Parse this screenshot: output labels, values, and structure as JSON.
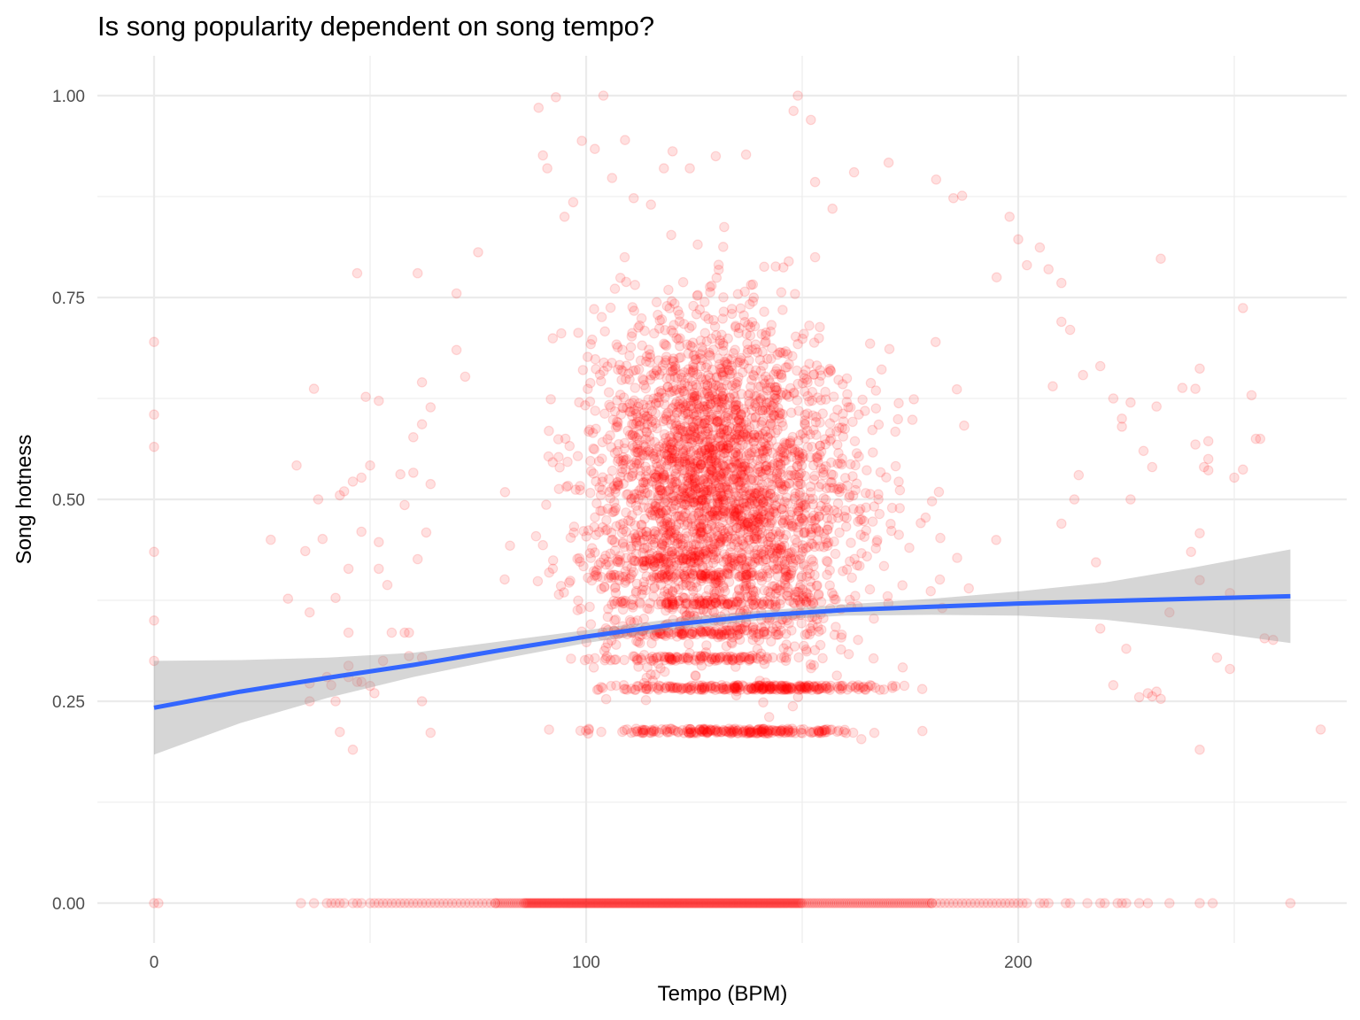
{
  "chart_data": {
    "type": "scatter",
    "title": "Is song popularity dependent on song tempo?",
    "xlabel": "Tempo (BPM)",
    "ylabel": "Song hotness",
    "xlim": [
      -13,
      276
    ],
    "ylim": [
      -0.1,
      1.05
    ],
    "x_ticks": [
      0,
      100,
      200
    ],
    "x_tick_labels": [
      "0",
      "100",
      "200"
    ],
    "x_minor_ticks": [
      50,
      150,
      250
    ],
    "y_ticks": [
      0,
      0.25,
      0.5,
      0.75,
      1.0
    ],
    "y_tick_labels": [
      "0.00",
      "0.25",
      "0.50",
      "0.75",
      "1.00"
    ],
    "y_minor_ticks": [
      0.125,
      0.375,
      0.625,
      0.875
    ],
    "grid": true,
    "legend": "none",
    "colors": {
      "points": "#ff0000",
      "point_alpha": 0.12,
      "smooth_line": "#3366ff",
      "ci_band": "#999999",
      "ci_alpha": 0.4
    },
    "series": [
      {
        "name": "songs",
        "kind": "points",
        "outlier_points": [
          [
            0,
            0.695
          ],
          [
            0,
            0.605
          ],
          [
            0,
            0.565
          ],
          [
            0,
            0.435
          ],
          [
            0,
            0.35
          ],
          [
            0,
            0.3
          ],
          [
            0,
            0.0
          ],
          [
            1,
            0.0
          ],
          [
            27,
            0.45
          ],
          [
            31,
            0.377
          ],
          [
            33,
            0.542
          ],
          [
            35,
            0.436
          ],
          [
            36,
            0.36
          ],
          [
            36,
            0.272
          ],
          [
            36,
            0.25
          ],
          [
            37,
            0.637
          ],
          [
            38,
            0.5
          ],
          [
            39,
            0.451
          ],
          [
            40,
            0.28
          ],
          [
            41,
            0.27
          ],
          [
            42,
            0.25
          ],
          [
            42,
            0.378
          ],
          [
            43,
            0.505
          ],
          [
            43,
            0.212
          ],
          [
            44,
            0.51
          ],
          [
            45,
            0.28
          ],
          [
            45,
            0.294
          ],
          [
            45,
            0.414
          ],
          [
            45,
            0.335
          ],
          [
            46,
            0.19
          ],
          [
            46,
            0.522
          ],
          [
            47,
            0.78
          ],
          [
            47,
            0.274
          ],
          [
            48,
            0.46
          ],
          [
            48,
            0.527
          ],
          [
            48,
            0.274
          ],
          [
            49,
            0.627
          ],
          [
            50,
            0.269
          ],
          [
            50,
            0.542
          ],
          [
            51,
            0.26
          ],
          [
            52,
            0.622
          ],
          [
            52,
            0.414
          ],
          [
            52,
            0.447
          ],
          [
            53,
            0.3
          ],
          [
            54,
            0.394
          ],
          [
            55,
            0.335
          ],
          [
            57,
            0.531
          ],
          [
            58,
            0.493
          ],
          [
            58,
            0.335
          ],
          [
            59,
            0.306
          ],
          [
            59,
            0.335
          ],
          [
            60,
            0.577
          ],
          [
            60,
            0.533
          ],
          [
            61,
            0.78
          ],
          [
            61,
            0.426
          ],
          [
            62,
            0.645
          ],
          [
            62,
            0.593
          ],
          [
            62,
            0.25
          ],
          [
            62,
            0.304
          ],
          [
            63,
            0.459
          ],
          [
            64,
            0.614
          ],
          [
            64,
            0.519
          ],
          [
            64,
            0.211
          ],
          [
            70,
            0.755
          ],
          [
            75,
            0.806
          ],
          [
            70,
            0.685
          ],
          [
            72,
            0.652
          ],
          [
            90,
            0.926
          ],
          [
            91,
            0.91
          ],
          [
            89,
            0.985
          ],
          [
            93,
            0.998
          ],
          [
            95,
            0.85
          ],
          [
            97,
            0.868
          ],
          [
            99,
            0.944
          ],
          [
            104,
            1.0
          ],
          [
            102,
            0.934
          ],
          [
            106,
            0.898
          ],
          [
            109,
            0.945
          ],
          [
            111,
            0.873
          ],
          [
            115,
            0.865
          ],
          [
            118,
            0.91
          ],
          [
            120,
            0.931
          ],
          [
            124,
            0.91
          ],
          [
            130,
            0.925
          ],
          [
            137,
            0.927
          ],
          [
            149,
            1.0
          ],
          [
            148,
            0.981
          ],
          [
            152,
            0.97
          ],
          [
            153,
            0.893
          ],
          [
            157,
            0.86
          ],
          [
            162,
            0.905
          ],
          [
            170,
            0.917
          ],
          [
            181,
            0.896
          ],
          [
            185,
            0.873
          ],
          [
            187,
            0.876
          ],
          [
            198,
            0.85
          ],
          [
            200,
            0.822
          ],
          [
            205,
            0.812
          ],
          [
            202,
            0.79
          ],
          [
            207,
            0.785
          ],
          [
            210,
            0.768
          ],
          [
            195,
            0.775
          ],
          [
            210,
            0.72
          ],
          [
            212,
            0.71
          ],
          [
            208,
            0.64
          ],
          [
            215,
            0.654
          ],
          [
            219,
            0.665
          ],
          [
            224,
            0.6
          ],
          [
            222,
            0.625
          ],
          [
            226,
            0.62
          ],
          [
            232,
            0.615
          ],
          [
            233,
            0.798
          ],
          [
            231,
            0.54
          ],
          [
            229,
            0.56
          ],
          [
            226,
            0.5
          ],
          [
            224,
            0.59
          ],
          [
            213,
            0.5
          ],
          [
            214,
            0.53
          ],
          [
            210,
            0.47
          ],
          [
            218,
            0.422
          ],
          [
            219,
            0.34
          ],
          [
            222,
            0.27
          ],
          [
            225,
            0.315
          ],
          [
            228,
            0.255
          ],
          [
            230,
            0.26
          ],
          [
            231,
            0.256
          ],
          [
            235,
            0.36
          ],
          [
            238,
            0.638
          ],
          [
            241,
            0.637
          ],
          [
            241,
            0.568
          ],
          [
            242,
            0.458
          ],
          [
            242,
            0.4
          ],
          [
            240,
            0.435
          ],
          [
            243,
            0.54
          ],
          [
            244,
            0.536
          ],
          [
            244,
            0.55
          ],
          [
            246,
            0.304
          ],
          [
            249,
            0.384
          ],
          [
            249,
            0.29
          ],
          [
            250,
            0.527
          ],
          [
            252,
            0.737
          ],
          [
            252,
            0.537
          ],
          [
            255,
            0.575
          ],
          [
            256,
            0.575
          ],
          [
            257,
            0.328
          ],
          [
            242,
            0.19
          ],
          [
            242,
            0.662
          ],
          [
            270,
            0.215
          ],
          [
            254,
            0.629
          ],
          [
            259,
            0.326
          ],
          [
            244,
            0.572
          ],
          [
            232,
            0.262
          ],
          [
            233,
            0.253
          ]
        ],
        "zero_row_points": [
          34,
          37,
          40,
          41,
          42,
          43,
          44,
          46,
          47,
          48,
          50,
          51,
          52,
          53,
          54,
          55,
          56,
          57,
          58,
          59,
          60,
          61,
          62,
          63,
          64,
          65,
          66,
          67,
          68,
          69,
          70,
          71,
          72,
          73,
          74,
          75,
          76,
          77,
          78,
          79,
          180,
          181,
          182,
          183,
          184,
          185,
          186,
          187,
          188,
          189,
          190,
          191,
          192,
          193,
          194,
          195,
          196,
          197,
          198,
          199,
          200,
          201,
          202,
          205,
          206,
          207,
          211,
          212,
          216,
          219,
          220,
          223,
          224,
          225,
          228,
          230,
          235,
          242,
          245,
          263
        ],
        "zero_row_dense_range": [
          79,
          180
        ],
        "dense_clusters": [
          {
            "tempo_range": [
              80,
              180
            ],
            "hotness_range": [
              0.19,
              0.86
            ],
            "count": 2400
          },
          {
            "tempo_range": [
              65,
              210
            ],
            "hotness_range": [
              0.2,
              0.78
            ],
            "count": 500
          },
          {
            "tempo_range": [
              85,
              190
            ],
            "hotness_band": 0.267,
            "count": 260
          },
          {
            "tempo_range": [
              80,
              190
            ],
            "hotness_band": 0.213,
            "count": 220
          },
          {
            "tempo_range": [
              82,
              170
            ],
            "hotness_band": 0.303,
            "count": 110
          },
          {
            "tempo_range": [
              82,
              175
            ],
            "hotness_band": 0.335,
            "count": 110
          },
          {
            "tempo_range": [
              85,
              170
            ],
            "hotness_band": 0.372,
            "count": 90
          },
          {
            "tempo_range": [
              88,
              165
            ],
            "hotness_band": 0.405,
            "count": 60
          },
          {
            "tempo_range": [
              88,
              160
            ],
            "hotness_band": 0.425,
            "count": 60
          }
        ]
      },
      {
        "name": "loess smooth",
        "kind": "line",
        "x": [
          0,
          20,
          40,
          60,
          80,
          100,
          120,
          140,
          160,
          180,
          200,
          220,
          240,
          263
        ],
        "y": [
          0.242,
          0.262,
          0.279,
          0.295,
          0.313,
          0.33,
          0.345,
          0.356,
          0.363,
          0.367,
          0.371,
          0.374,
          0.377,
          0.38
        ],
        "ci_lower": [
          0.184,
          0.223,
          0.254,
          0.28,
          0.302,
          0.322,
          0.338,
          0.35,
          0.356,
          0.357,
          0.356,
          0.351,
          0.339,
          0.322
        ],
        "ci_upper": [
          0.3,
          0.301,
          0.304,
          0.31,
          0.324,
          0.338,
          0.352,
          0.362,
          0.37,
          0.377,
          0.386,
          0.397,
          0.415,
          0.438
        ]
      }
    ]
  }
}
